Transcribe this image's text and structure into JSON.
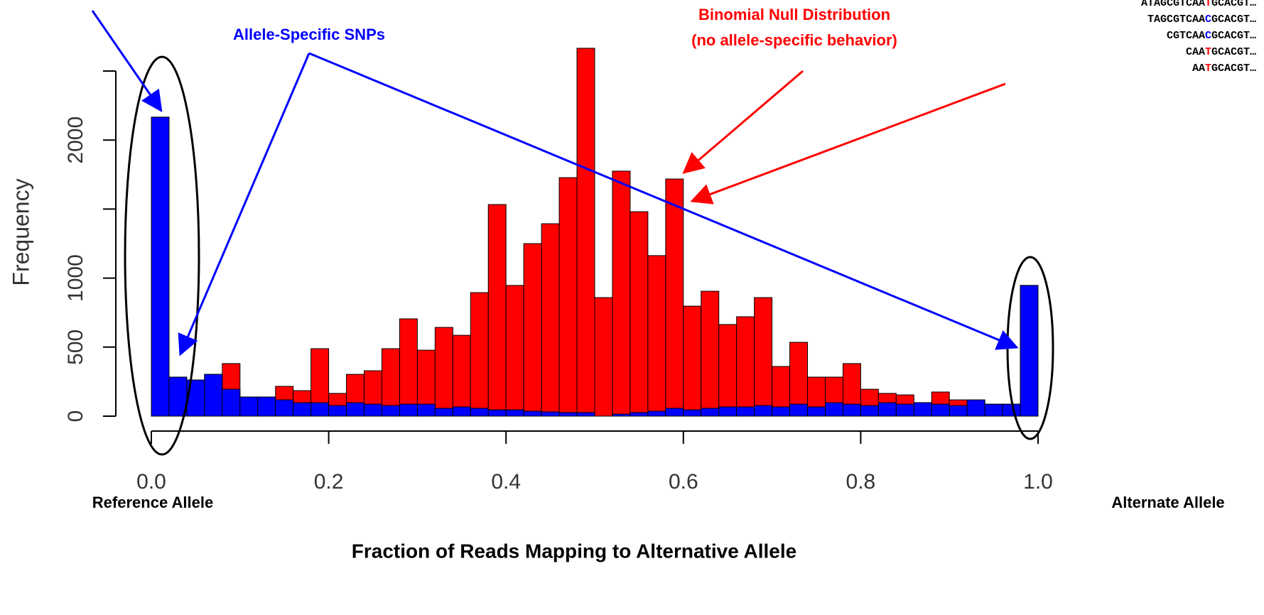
{
  "chart_data": {
    "type": "histogram",
    "xlabel": "Fraction of Reads Mapping to Alternative Allele",
    "ylabel": "Frequency",
    "bins": [
      0,
      0.02,
      0.04,
      0.06,
      0.08,
      0.1,
      0.12,
      0.14,
      0.16,
      0.18,
      0.2,
      0.22,
      0.24,
      0.26,
      0.28,
      0.3,
      0.32,
      0.34,
      0.36,
      0.38,
      0.4,
      0.42,
      0.44,
      0.46,
      0.48,
      0.5,
      0.52,
      0.54,
      0.56,
      0.58,
      0.6,
      0.62,
      0.64,
      0.66,
      0.68,
      0.7,
      0.72,
      0.74,
      0.76,
      0.78,
      0.8,
      0.82,
      0.84,
      0.86,
      0.88,
      0.9,
      0.92,
      0.94,
      0.96,
      0.98,
      1
    ],
    "series": [
      {
        "color": "#ff0000",
        "values": [
          2166,
          283,
          262,
          303,
          381,
          139,
          139,
          216,
          185,
          489,
          165,
          303,
          329,
          489,
          705,
          478,
          643,
          586,
          895,
          1533,
          947,
          1250,
          1394,
          1728,
          2665,
          859,
          1775,
          1481,
          1163,
          1718,
          797,
          905,
          664,
          720,
          859,
          360,
          535,
          283,
          283,
          381,
          195,
          165,
          154,
          98,
          175,
          118,
          118,
          87,
          87,
          947
        ]
      },
      {
        "color": "#0000ff",
        "values": [
          2166,
          283,
          262,
          303,
          195,
          139,
          139,
          118,
          98,
          98,
          77,
          98,
          87,
          77,
          87,
          87,
          57,
          67,
          57,
          46,
          46,
          36,
          31,
          26,
          26,
          0,
          15,
          26,
          36,
          57,
          46,
          57,
          67,
          67,
          77,
          67,
          87,
          67,
          98,
          87,
          77,
          98,
          87,
          98,
          87,
          77,
          118,
          87,
          87,
          947
        ]
      }
    ],
    "xlim": [
      0,
      1
    ],
    "ylim": [
      0,
      2700
    ],
    "xticks": [
      {
        "value": 0,
        "label": "0.0"
      },
      0.2,
      0.4,
      0.6,
      0.8,
      {
        "value": 1,
        "label": "1.0"
      }
    ],
    "yticks": [
      0,
      500,
      1000,
      {
        "value": 1500,
        "label": null
      },
      2000,
      {
        "value": 2500,
        "label": null
      }
    ],
    "annotations": {
      "null_title": "Binomial Null Distribution",
      "null_subtitle": "(no allele-specific behavior)",
      "snps": "Allele-Specific SNPs",
      "reference": "Reference Allele",
      "alternate": "Alternate Allele"
    },
    "reads": [
      {
        "prefix": "ATAGCGTCAA",
        "snp": "T",
        "suffix": "GCACGT…",
        "color": "#ff0000"
      },
      {
        "prefix": "TAGCGTCAA",
        "snp": "C",
        "suffix": "GCACGT…",
        "color": "#0000ff"
      },
      {
        "prefix": "CGTCAA",
        "snp": "C",
        "suffix": "GCACGT…",
        "color": "#0000ff"
      },
      {
        "prefix": "CAA",
        "snp": "T",
        "suffix": "GCACGT…",
        "color": "#ff0000"
      },
      {
        "prefix": "AA",
        "snp": "T",
        "suffix": "GCACGT…",
        "color": "#ff0000"
      }
    ]
  }
}
